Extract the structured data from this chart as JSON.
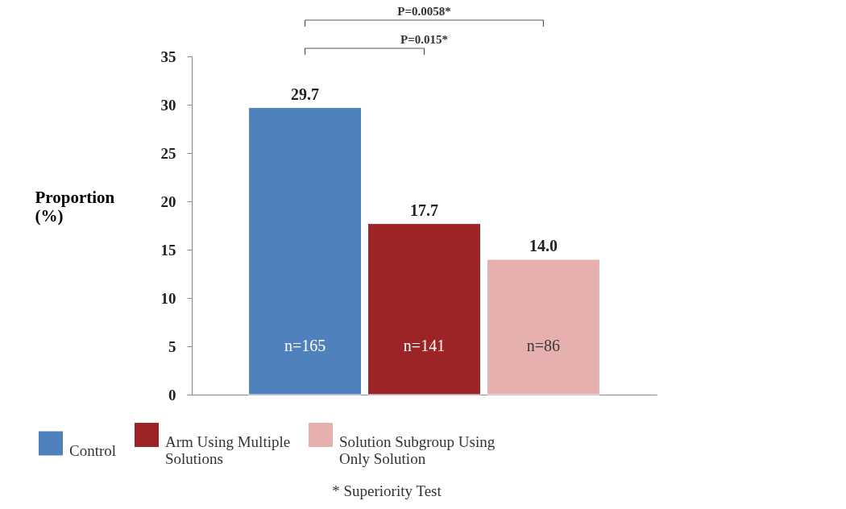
{
  "chart_data": {
    "type": "bar",
    "ylabel": "Proportion (%)",
    "categories": [
      null,
      null,
      null
    ],
    "series": [
      {
        "name": "Control",
        "color": "#4f81bd",
        "values": [
          29.7,
          null,
          null
        ],
        "value_labels": [
          "29.7",
          null,
          null
        ]
      },
      {
        "name": "Arm Using Multiple Solutions",
        "color": "#9c2427",
        "values": [
          null,
          17.7,
          null
        ],
        "value_labels": [
          null,
          "17.7",
          null
        ]
      },
      {
        "name": "Solution Subgroup Using Only Solution",
        "color": "#e6b0ae",
        "values": [
          null,
          null,
          14.0
        ],
        "value_labels": [
          null,
          null,
          "14.0"
        ]
      }
    ],
    "ylim": [
      0,
      35
    ],
    "yticks": [
      0,
      5,
      10,
      15,
      20,
      25,
      30,
      35
    ],
    "grid": false,
    "legend": "bottom",
    "annotations": [
      "n=165",
      "n=141",
      "n=86",
      "P=0.015*",
      "P=0.0058*",
      "* Superiority Test"
    ]
  }
}
